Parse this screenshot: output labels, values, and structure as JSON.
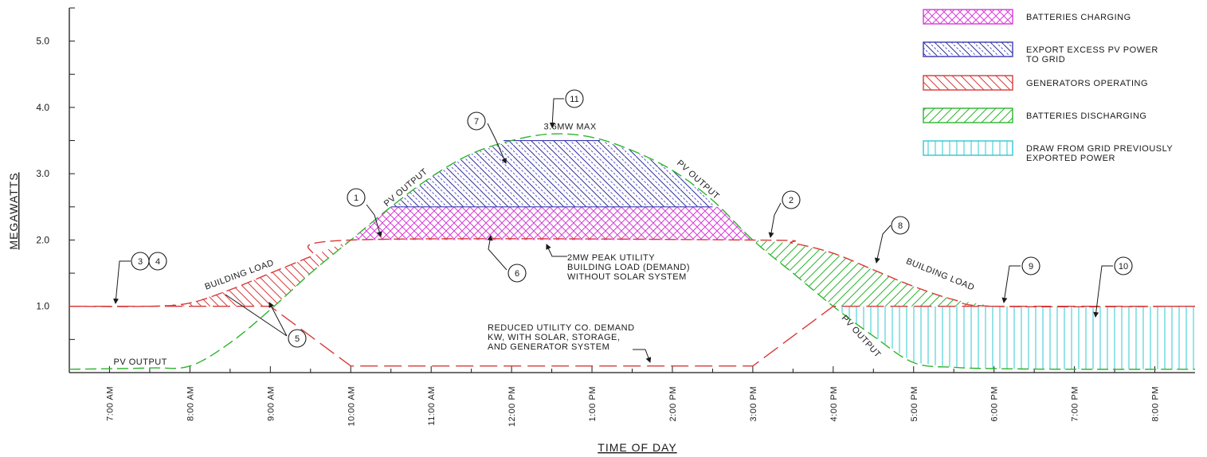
{
  "chart_data": {
    "type": "area",
    "ylabel": "MEGAWATTS",
    "xlabel": "TIME OF DAY",
    "ylim": [
      0,
      5.5
    ],
    "xlim": [
      6.5,
      20.5
    ],
    "y_ticks": [
      "1.0",
      "2.0",
      "3.0",
      "4.0",
      "5.0"
    ],
    "x_ticks": [
      "7:00 AM",
      "8:00 AM",
      "9:00 AM",
      "10:00 AM",
      "11:00 AM",
      "12:00 PM",
      "1:00 PM",
      "2:00 PM",
      "3:00 PM",
      "4:00 PM",
      "5:00 PM",
      "6:00 PM",
      "7:00 PM",
      "8:00 PM"
    ],
    "x_tick_hours": [
      7,
      8,
      9,
      10,
      11,
      12,
      13,
      14,
      15,
      16,
      17,
      18,
      19,
      20
    ],
    "series": [
      {
        "name": "PV OUTPUT",
        "color": "#2db52d",
        "x": [
          6.5,
          7.5,
          8.0,
          8.5,
          9.0,
          9.5,
          10.0,
          10.5,
          11.0,
          11.5,
          12.0,
          12.5,
          13.0,
          13.5,
          14.0,
          14.5,
          15.0,
          15.5,
          16.0,
          16.5,
          17.0,
          17.5,
          18.0,
          19.0,
          20.5
        ],
        "values": [
          0.05,
          0.07,
          0.1,
          0.45,
          0.95,
          1.5,
          2.0,
          2.5,
          2.95,
          3.3,
          3.5,
          3.6,
          3.55,
          3.35,
          3.05,
          2.6,
          2.0,
          1.5,
          1.0,
          0.55,
          0.15,
          0.08,
          0.06,
          0.05,
          0.05
        ]
      },
      {
        "name": "BUILDING LOAD",
        "color": "#d93a3a",
        "x": [
          6.5,
          7.5,
          8.0,
          8.5,
          9.0,
          9.5,
          10.0,
          15.0,
          15.5,
          16.0,
          16.5,
          17.0,
          17.5,
          18.0,
          20.5
        ],
        "values": [
          1.0,
          1.0,
          1.05,
          1.25,
          1.5,
          1.75,
          2.0,
          2.0,
          1.95,
          1.8,
          1.55,
          1.3,
          1.1,
          1.0,
          1.0
        ]
      },
      {
        "name": "REDUCED UTILITY CO. DEMAND KW, WITH SOLAR, STORAGE, AND GENERATOR SYSTEM",
        "color": "#d93a3a",
        "x": [
          6.5,
          9.0,
          10.0,
          15.0,
          16.0,
          20.5
        ],
        "values": [
          1.0,
          1.0,
          0.1,
          0.1,
          1.0,
          1.0
        ]
      }
    ],
    "regions": [
      {
        "name": "BATTERIES CHARGING",
        "color": "#d93ad9",
        "y_range": [
          2.0,
          2.5
        ]
      },
      {
        "name": "EXPORT EXCESS PV POWER TO GRID",
        "color": "#3a3ab0",
        "y_range": [
          2.5,
          3.5
        ]
      },
      {
        "name": "GENERATORS OPERATING",
        "color": "#d93a3a",
        "x_range": [
          7.5,
          10.0
        ]
      },
      {
        "name": "BATTERIES DISCHARGING",
        "color": "#2db52d",
        "x_range": [
          15.0,
          18.0
        ]
      },
      {
        "name": "DRAW FROM GRID PREVIOUSLY EXPORTED POWER",
        "color": "#2ec9d1",
        "x_range": [
          16.0,
          20.5
        ]
      }
    ]
  },
  "legend": {
    "items": [
      {
        "lines": [
          "BATTERIES CHARGING"
        ],
        "color": "#d93ad9",
        "pattern": "cross"
      },
      {
        "lines": [
          "EXPORT EXCESS PV POWER",
          "TO GRID"
        ],
        "color": "#3a3ab0",
        "pattern": "dashdiag"
      },
      {
        "lines": [
          "GENERATORS OPERATING"
        ],
        "color": "#d93a3a",
        "pattern": "backdiag"
      },
      {
        "lines": [
          "BATTERIES DISCHARGING"
        ],
        "color": "#2db52d",
        "pattern": "fwddiag"
      },
      {
        "lines": [
          "DRAW FROM GRID PREVIOUSLY",
          "EXPORTED POWER"
        ],
        "color": "#2ec9d1",
        "pattern": "vert"
      }
    ]
  },
  "labels": {
    "max": "3.6MW MAX",
    "building_load": "BUILDING LOAD",
    "pv_output": "PV OUTPUT",
    "peak_note": [
      "2MW PEAK UTILITY",
      "BUILDING LOAD (DEMAND)",
      "WITHOUT SOLAR SYSTEM"
    ],
    "reduced_note": [
      "REDUCED UTILITY CO. DEMAND",
      "KW, WITH SOLAR, STORAGE,",
      "AND GENERATOR SYSTEM"
    ]
  },
  "callouts": [
    "1",
    "2",
    "3",
    "4",
    "5",
    "6",
    "7",
    "8",
    "9",
    "10",
    "11"
  ]
}
